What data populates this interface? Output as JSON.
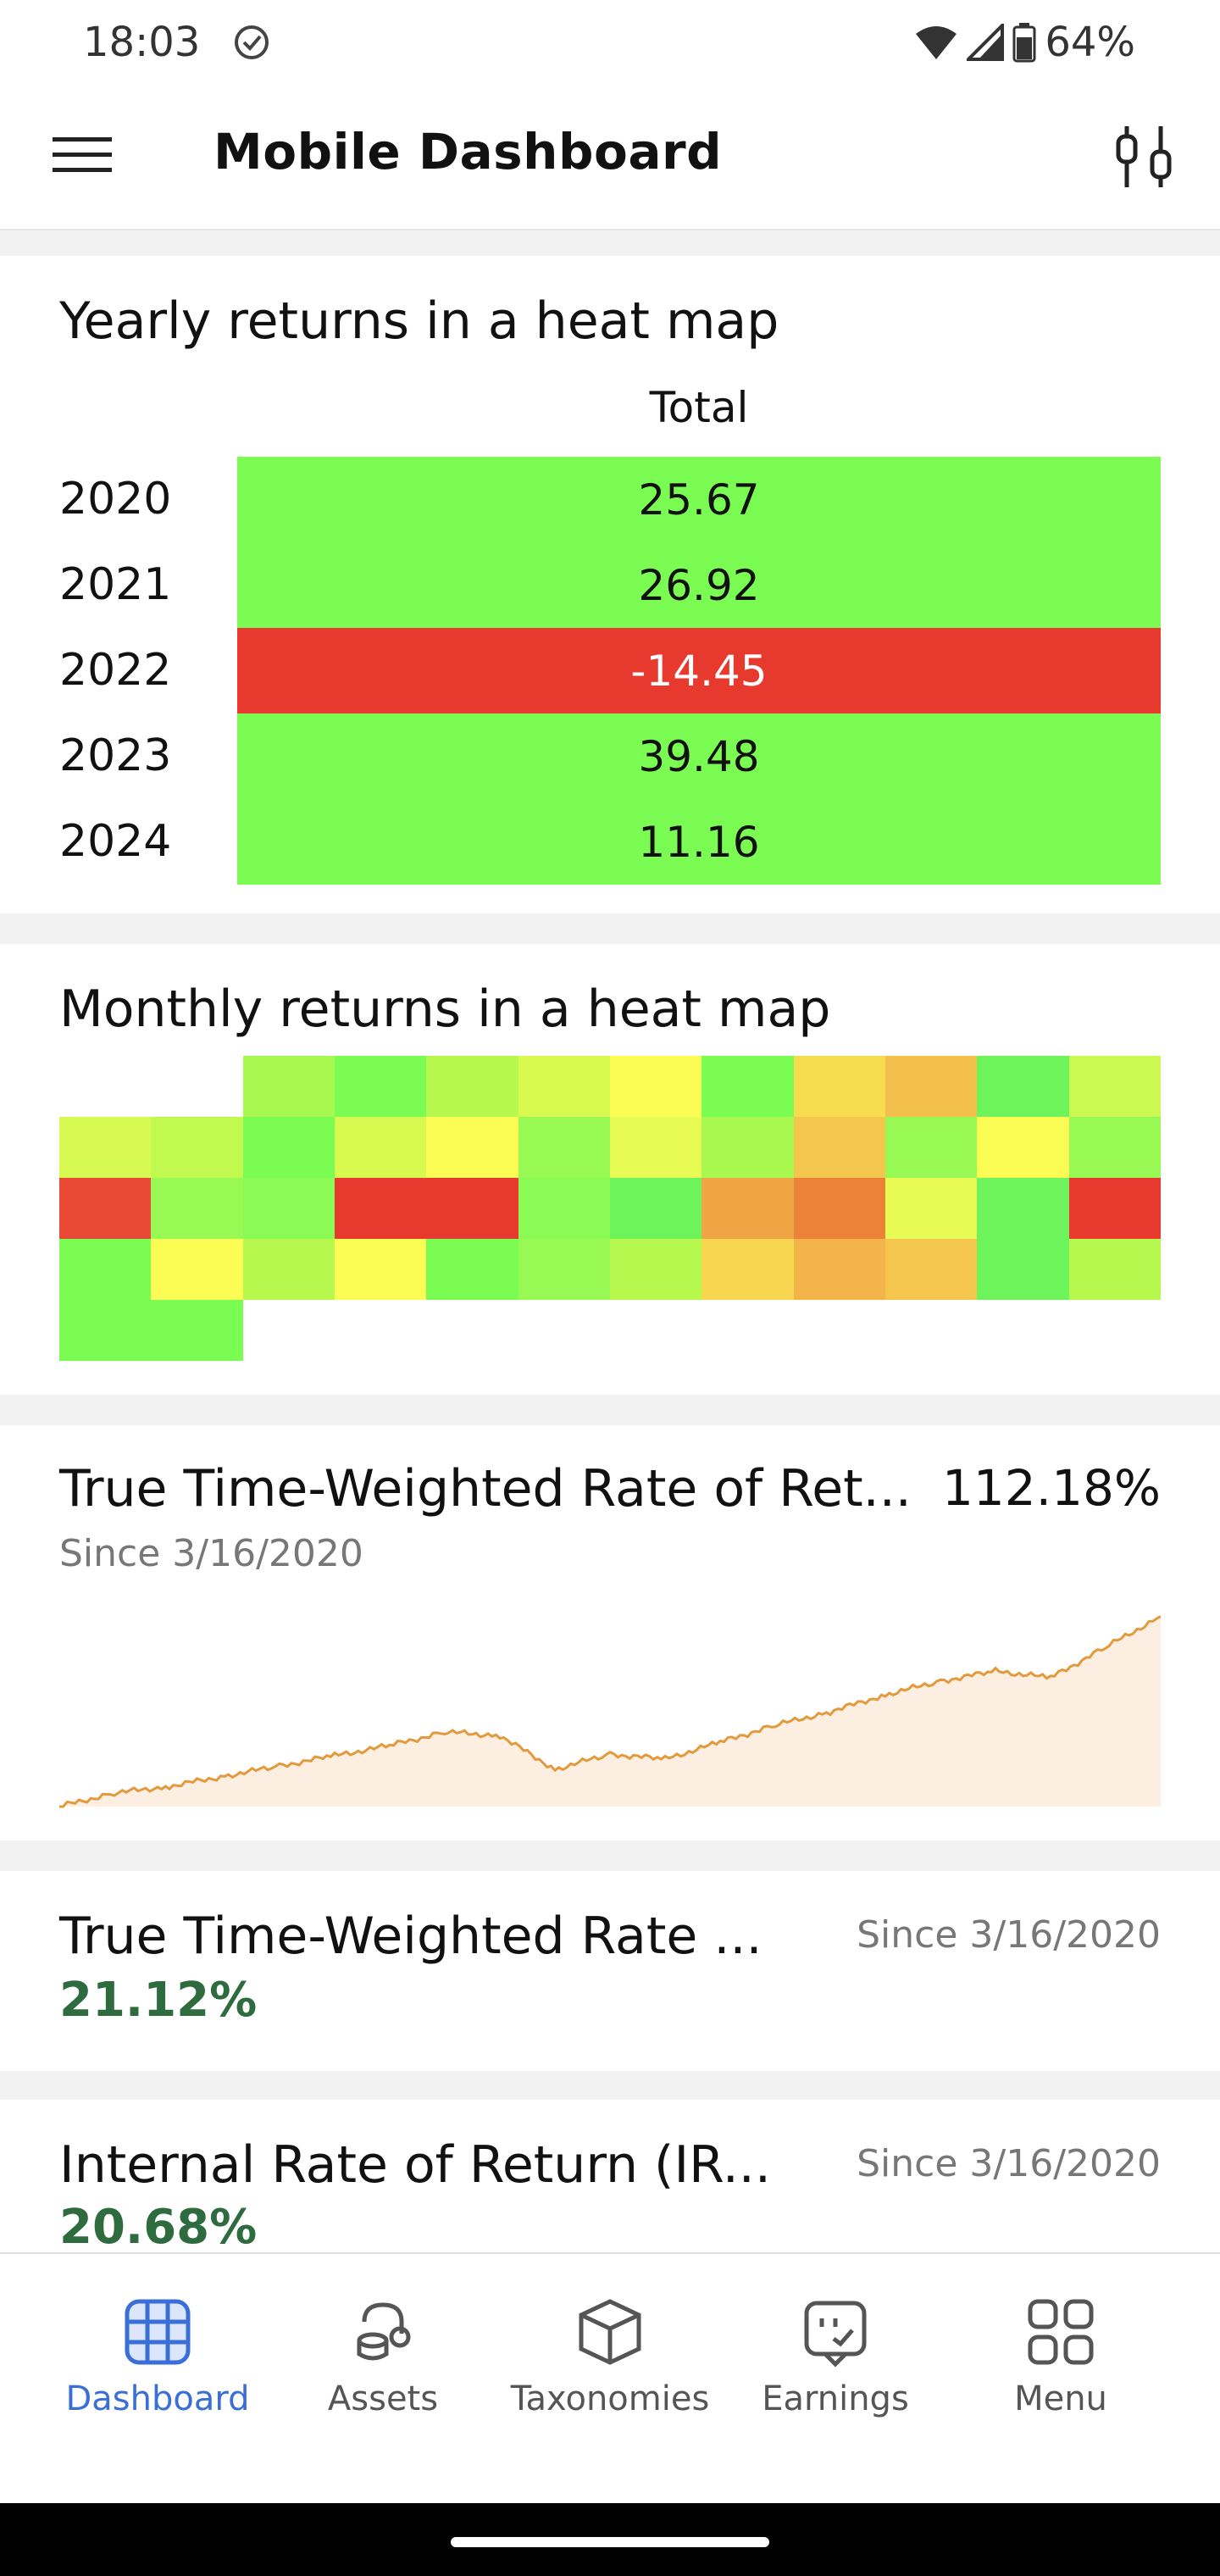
{
  "status_bar": {
    "time": "18:03",
    "battery": "64%"
  },
  "app_bar": {
    "title": "Mobile Dashboard",
    "menu_icon": "hamburger-menu-icon",
    "filter_icon": "sliders-icon"
  },
  "yearly_heatmap": {
    "title": "Yearly returns in a heat map",
    "column_header": "Total",
    "rows": [
      {
        "year": "2020",
        "value": "25.67",
        "color": "#7bfc52",
        "text_color": "#111111"
      },
      {
        "year": "2021",
        "value": "26.92",
        "color": "#7bfc52",
        "text_color": "#111111"
      },
      {
        "year": "2022",
        "value": "-14.45",
        "color": "#e8392f",
        "text_color": "#ffffff"
      },
      {
        "year": "2023",
        "value": "39.48",
        "color": "#7bfc52",
        "text_color": "#111111"
      },
      {
        "year": "2024",
        "value": "11.16",
        "color": "#7bfc52",
        "text_color": "#111111"
      }
    ]
  },
  "monthly_heatmap": {
    "title": "Monthly returns in a heat map",
    "rows": [
      [
        null,
        null,
        "#a8f850",
        "#7bfc52",
        "#b6f84e",
        "#d8fa50",
        "#fbfd55",
        "#7bfc52",
        "#f7dc50",
        "#f3c04c",
        "#6df45a",
        "#ccf852"
      ],
      [
        "#d6fa52",
        "#c2f94f",
        "#7bfc52",
        "#d8fa50",
        "#fbfd55",
        "#98f955",
        "#e8fb55",
        "#a8f850",
        "#f5c64e",
        "#98f955",
        "#fbfd55",
        "#98f955"
      ],
      [
        "#e84a35",
        "#98f955",
        "#8bfa54",
        "#e8392f",
        "#e8392f",
        "#8bfa54",
        "#6df45a",
        "#f0a544",
        "#ec8238",
        "#e8fb55",
        "#6df45a",
        "#e8392f"
      ],
      [
        "#7bfc52",
        "#fbfd55",
        "#b6f84e",
        "#fbfd55",
        "#7bfc52",
        "#98f955",
        "#b6f84e",
        "#f7d650",
        "#f3b44a",
        "#f5c64e",
        "#6df45a",
        "#b6f84e"
      ],
      [
        "#7bfc52",
        "#7bfc52",
        null,
        null,
        null,
        null,
        null,
        null,
        null,
        null,
        null,
        null
      ]
    ]
  },
  "ttwror_card": {
    "title": "True Time-Weighted Rate of Ret...",
    "value": "112.18%",
    "since": "Since 3/16/2020",
    "chart_data": {
      "type": "area",
      "line_color": "#e39a3c",
      "fill_color": "#fcefe2",
      "ylim": [
        0,
        120
      ],
      "x": [
        "2020-03",
        "2020-06",
        "2020-09",
        "2020-12",
        "2021-03",
        "2021-06",
        "2021-09",
        "2021-12",
        "2022-03",
        "2022-06",
        "2022-09",
        "2022-12",
        "2023-03",
        "2023-06",
        "2023-09",
        "2023-12",
        "2024-03",
        "2024-06",
        "2024-09",
        "2024-12",
        "2025-01"
      ],
      "values": [
        0,
        8,
        12,
        18,
        24,
        30,
        36,
        44,
        42,
        22,
        31,
        28,
        38,
        48,
        56,
        66,
        74,
        80,
        76,
        94,
        112.18
      ]
    }
  },
  "ttwror_annualized_card": {
    "title": "True Time-Weighted Rate ...",
    "since": "Since 3/16/2020",
    "value": "21.12%"
  },
  "irr_card": {
    "title": "Internal Rate of Return (IR...",
    "since": "Since 3/16/2020",
    "value": "20.68%"
  },
  "bottom_nav": {
    "items": [
      {
        "label": "Dashboard",
        "icon": "grid-icon",
        "active": true
      },
      {
        "label": "Assets",
        "icon": "coins-icon",
        "active": false
      },
      {
        "label": "Taxonomies",
        "icon": "cube-icon",
        "active": false
      },
      {
        "label": "Earnings",
        "icon": "earnings-icon",
        "active": false
      },
      {
        "label": "Menu",
        "icon": "apps-icon",
        "active": false
      }
    ]
  }
}
